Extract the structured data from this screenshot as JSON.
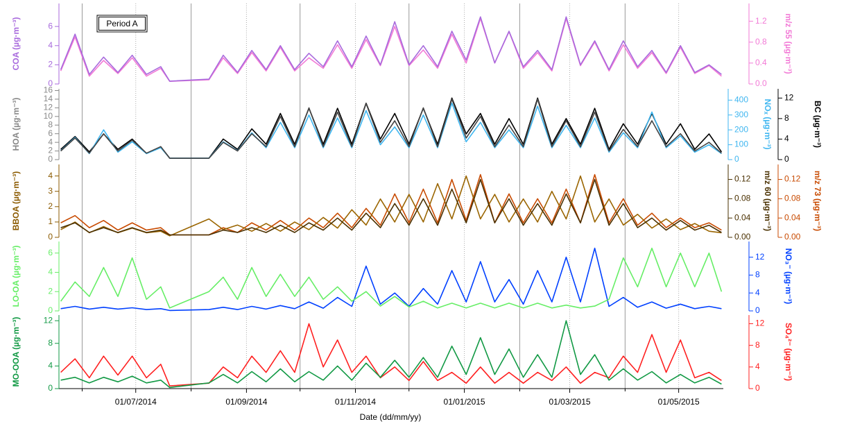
{
  "chart_data": {
    "type": "line",
    "annotation": "Period A",
    "xlabel": "Date (dd/mm/yy)",
    "xlim": [
      "19/05/2014",
      "26/05/2015"
    ],
    "xticks": [
      "01/07/2014",
      "01/09/2014",
      "01/11/2014",
      "01/01/2015",
      "01/03/2015",
      "01/05/2015"
    ],
    "xgrid": [
      "01/06/2014",
      "01/08/2014",
      "01/10/2014",
      "01/12/2014",
      "01/02/2015",
      "01/04/2015"
    ],
    "x": [
      "20/05/2014",
      "28/05/2014",
      "05/06/2014",
      "13/06/2014",
      "21/06/2014",
      "29/06/2014",
      "07/07/2014",
      "15/07/2014",
      "20/07/2014",
      "11/08/2014",
      "19/08/2014",
      "27/08/2014",
      "04/09/2014",
      "12/09/2014",
      "20/09/2014",
      "28/09/2014",
      "06/10/2014",
      "14/10/2014",
      "22/10/2014",
      "30/10/2014",
      "07/11/2014",
      "15/11/2014",
      "23/11/2014",
      "01/12/2014",
      "09/12/2014",
      "17/12/2014",
      "25/12/2014",
      "02/01/2015",
      "10/01/2015",
      "18/01/2015",
      "26/01/2015",
      "03/02/2015",
      "11/02/2015",
      "19/02/2015",
      "27/02/2015",
      "07/03/2015",
      "15/03/2015",
      "23/03/2015",
      "31/03/2015",
      "08/04/2015",
      "16/04/2015",
      "24/04/2015",
      "02/05/2015",
      "10/05/2015",
      "18/05/2015",
      "25/05/2015"
    ],
    "panels": [
      {
        "axes": [
          {
            "label": "COA (µg·m⁻³)",
            "color": "#a86add",
            "lim": [
              0,
              8.4
            ],
            "ticks": [
              0,
              2,
              4,
              6
            ]
          },
          {
            "label": "m/z 55 (µg·m⁻³)",
            "color": "#f27ad6",
            "lim": [
              0,
              1.54
            ],
            "ticks": [
              {
                "value": 0,
                "label": "0.0"
              },
              0.4,
              0.8,
              1.2
            ]
          }
        ],
        "series": [
          {
            "axis": 1,
            "color": "#f27ad6",
            "values": [
              0.25,
              0.9,
              0.15,
              0.45,
              0.2,
              0.5,
              0.15,
              0.3,
              0.05,
              0.08,
              0.5,
              0.2,
              0.6,
              0.25,
              0.7,
              0.25,
              0.5,
              0.3,
              0.75,
              0.3,
              0.85,
              0.35,
              1.1,
              0.35,
              0.65,
              0.3,
              0.95,
              0.4,
              1.25,
              0.4,
              1.0,
              0.3,
              0.6,
              0.25,
              1.25,
              0.35,
              0.8,
              0.25,
              0.75,
              0.3,
              0.6,
              0.2,
              0.7,
              0.2,
              0.35,
              0.15
            ]
          },
          {
            "axis": 0,
            "color": "#a86add",
            "values": [
              1.5,
              5.2,
              1.0,
              2.8,
              1.2,
              3.0,
              1.0,
              1.8,
              0.3,
              0.5,
              3.0,
              1.2,
              3.5,
              1.5,
              4.0,
              1.5,
              3.2,
              1.8,
              4.5,
              1.8,
              5.0,
              2.0,
              6.5,
              2.0,
              4.0,
              1.8,
              5.5,
              2.5,
              7.0,
              2.2,
              5.5,
              1.8,
              3.5,
              1.5,
              7.0,
              2.0,
              4.5,
              1.5,
              4.5,
              1.8,
              3.5,
              1.2,
              4.0,
              1.2,
              2.0,
              1.0
            ]
          }
        ]
      },
      {
        "axes": [
          {
            "label": "HOA (µg·m⁻³)",
            "color": "#888888",
            "lim": [
              0,
              16.4
            ],
            "ticks": [
              0,
              2,
              4,
              6,
              8,
              10,
              12,
              14,
              16
            ]
          },
          {
            "label": "NOₓ (µg·m⁻³)",
            "color": "#3fb6f0",
            "lim": [
              0,
              476
            ],
            "ticks": [
              0,
              100,
              200,
              300,
              400
            ]
          },
          {
            "label": "BC (µg·m⁻³)",
            "color": "#000000",
            "lim": [
              0,
              13.8
            ],
            "ticks": [
              0,
              4,
              8,
              12
            ]
          }
        ],
        "series": [
          {
            "axis": 2,
            "color": "#000000",
            "values": [
              2,
              4.5,
              1.5,
              5,
              2,
              4,
              1.2,
              2.5,
              0.3,
              0.3,
              4,
              2,
              6,
              3,
              9,
              3,
              10,
              3,
              10,
              3,
              11,
              4,
              9,
              3,
              10,
              3,
              12,
              5,
              9,
              3,
              8,
              3,
              12,
              3,
              8,
              3,
              10,
              2,
              7,
              3,
              9,
              3,
              7,
              2,
              5,
              1.5
            ]
          },
          {
            "axis": 1,
            "color": "#3fb6f0",
            "values": [
              60,
              150,
              40,
              200,
              50,
              120,
              40,
              80,
              10,
              10,
              120,
              60,
              180,
              80,
              250,
              80,
              300,
              80,
              280,
              80,
              330,
              100,
              220,
              80,
              300,
              80,
              380,
              120,
              250,
              80,
              200,
              80,
              360,
              80,
              230,
              80,
              280,
              50,
              180,
              80,
              320,
              80,
              160,
              50,
              100,
              40
            ]
          },
          {
            "axis": 0,
            "color": "#444444",
            "values": [
              2,
              5,
              1.5,
              6,
              2,
              4.5,
              1.5,
              3,
              0.3,
              0.3,
              4,
              2,
              6,
              3,
              10,
              3,
              12,
              3,
              11,
              3,
              13,
              4,
              9,
              3,
              12,
              3,
              14,
              5,
              10,
              3,
              8,
              3,
              14,
              3,
              9,
              3,
              11,
              2,
              7,
              3,
              9,
              3,
              6,
              2,
              4,
              1.5
            ]
          }
        ]
      },
      {
        "axes": [
          {
            "label": "BBOA (µg·m⁻³)",
            "color": "#8b5a00",
            "lim": [
              0,
              4.75
            ],
            "ticks": [
              0,
              1,
              2,
              3,
              4
            ]
          },
          {
            "label": "m/z 60 (µg·m⁻³)",
            "color": "#4a3000",
            "lim": [
              0,
              0.151
            ],
            "ticks": [
              {
                "value": 0,
                "label": "0.00"
              },
              0.04,
              0.08,
              0.12
            ]
          },
          {
            "label": "m/z 73 (µg·m⁻³)",
            "color": "#c84a00",
            "lim": [
              0,
              0.151
            ],
            "ticks": [
              {
                "value": 0,
                "label": "0.00"
              },
              0.04,
              0.08,
              0.12
            ]
          }
        ],
        "series": [
          {
            "axis": 2,
            "color": "#c84a00",
            "values": [
              0.03,
              0.045,
              0.02,
              0.035,
              0.015,
              0.03,
              0.015,
              0.02,
              0.005,
              0.005,
              0.02,
              0.01,
              0.03,
              0.015,
              0.035,
              0.015,
              0.04,
              0.02,
              0.05,
              0.02,
              0.06,
              0.025,
              0.09,
              0.03,
              0.1,
              0.03,
              0.12,
              0.035,
              0.13,
              0.03,
              0.09,
              0.03,
              0.08,
              0.03,
              0.1,
              0.03,
              0.13,
              0.03,
              0.08,
              0.025,
              0.05,
              0.02,
              0.04,
              0.02,
              0.03,
              0.015
            ]
          },
          {
            "axis": 0,
            "color": "#9a6500",
            "values": [
              0.5,
              1.0,
              0.3,
              0.7,
              0.3,
              0.6,
              0.3,
              0.4,
              0.1,
              1.2,
              0.5,
              0.8,
              0.4,
              0.9,
              0.4,
              1.0,
              0.5,
              1.3,
              0.6,
              1.8,
              0.8,
              2.5,
              1.0,
              2.8,
              1.0,
              3.5,
              1.2,
              4.0,
              1.2,
              2.8,
              1.0,
              2.5,
              1.0,
              3.0,
              1.2,
              4.0,
              1.0,
              2.5,
              0.8,
              1.5,
              0.6,
              1.2,
              0.5,
              0.9,
              0.4,
              0.3
            ]
          },
          {
            "axis": 1,
            "color": "#4a3000",
            "values": [
              0.02,
              0.03,
              0.01,
              0.02,
              0.01,
              0.02,
              0.01,
              0.015,
              0.005,
              0.005,
              0.015,
              0.01,
              0.02,
              0.01,
              0.025,
              0.01,
              0.03,
              0.015,
              0.04,
              0.015,
              0.05,
              0.02,
              0.07,
              0.025,
              0.08,
              0.025,
              0.1,
              0.03,
              0.12,
              0.03,
              0.08,
              0.025,
              0.07,
              0.025,
              0.09,
              0.03,
              0.12,
              0.025,
              0.07,
              0.02,
              0.04,
              0.015,
              0.035,
              0.015,
              0.025,
              0.01
            ]
          }
        ]
      },
      {
        "axes": [
          {
            "label": "LO-OA (µg·m⁻³)",
            "color": "#66ee66",
            "lim": [
              0,
              7.2
            ],
            "ticks": [
              0,
              2,
              4,
              6
            ]
          },
          {
            "label": "NO₃⁻ (µg·m⁻³)",
            "color": "#0040ff",
            "lim": [
              0,
              15.5
            ],
            "ticks": [
              0,
              4,
              8,
              12
            ]
          }
        ],
        "series": [
          {
            "axis": 1,
            "color": "#0040ff",
            "values": [
              0.5,
              1,
              0.4,
              0.8,
              0.4,
              0.7,
              0.3,
              0.5,
              0.1,
              0.3,
              0.8,
              0.3,
              1,
              0.4,
              1.2,
              0.5,
              2,
              0.6,
              3,
              1,
              10,
              1.5,
              4,
              1,
              5,
              1.5,
              9,
              2,
              11,
              2,
              7,
              1.5,
              9,
              2,
              12,
              2,
              14,
              1,
              3,
              0.8,
              2,
              0.6,
              1.5,
              0.5,
              1,
              0.5
            ]
          },
          {
            "axis": 0,
            "color": "#66ee66",
            "values": [
              1,
              3,
              1.5,
              4.5,
              1.5,
              5.5,
              1.2,
              2.5,
              0.3,
              2.0,
              3.5,
              1.2,
              4.5,
              1.5,
              3.8,
              1.5,
              3.5,
              1.2,
              2.5,
              1.0,
              2.0,
              0.5,
              1.5,
              0.4,
              1.0,
              0.3,
              0.8,
              0.3,
              0.8,
              0.3,
              0.8,
              0.3,
              0.8,
              0.3,
              0.6,
              0.3,
              0.5,
              1.2,
              5.5,
              2.5,
              6.5,
              2.5,
              6.0,
              2.5,
              6.0,
              2.0
            ]
          }
        ]
      },
      {
        "axes": [
          {
            "label": "MO-OOA (µg·m⁻³)",
            "color": "#119944",
            "lim": [
              0,
              13
            ],
            "ticks": [
              0,
              4,
              8,
              12
            ]
          },
          {
            "label": "SO₄²⁻ (µg·m⁻³)",
            "color": "#ff2020",
            "lim": [
              0,
              13.6
            ],
            "ticks": [
              0,
              4,
              8,
              12
            ]
          }
        ],
        "series": [
          {
            "axis": 1,
            "color": "#ff2020",
            "values": [
              3,
              5.5,
              2,
              6,
              2.5,
              6,
              2,
              4.5,
              0.5,
              1,
              4,
              2,
              6,
              3,
              7,
              3,
              12,
              4,
              9,
              3,
              6,
              2,
              4,
              1.5,
              5,
              1.5,
              3,
              1,
              4,
              1,
              3,
              1,
              3,
              1.5,
              4,
              1,
              3,
              2,
              6,
              3,
              10,
              3,
              9,
              2,
              3,
              1.5
            ]
          },
          {
            "axis": 0,
            "color": "#119944",
            "values": [
              1.5,
              2.0,
              1.0,
              2.0,
              1.2,
              2.2,
              1.0,
              1.5,
              0.2,
              1.0,
              2.5,
              1.0,
              3.0,
              1.2,
              3.5,
              1.2,
              3.0,
              1.5,
              4.0,
              1.5,
              4.5,
              2.0,
              5.0,
              2.0,
              5.5,
              2.0,
              7.5,
              2.5,
              9.0,
              2.5,
              7.0,
              2.0,
              6.0,
              2.0,
              12.0,
              2.5,
              6.0,
              1.5,
              3.5,
              1.5,
              3.0,
              1.0,
              2.5,
              1.0,
              2.0,
              0.8
            ]
          }
        ]
      }
    ]
  }
}
